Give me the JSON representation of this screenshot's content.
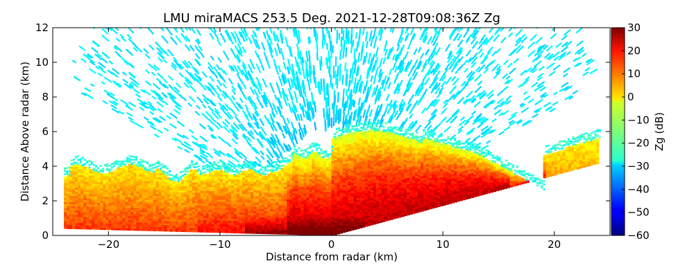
{
  "chart_data": {
    "type": "heatmap",
    "title": "LMU miraMACS 253.5 Deg. 2021-12-28T09:08:36Z  Zg",
    "xlabel": "Distance from radar (km)",
    "ylabel": "Distance Above radar  (km)",
    "xlim": [
      -25,
      25
    ],
    "ylim": [
      0,
      12
    ],
    "xticks": [
      -20,
      -10,
      0,
      10,
      20
    ],
    "yticks": [
      0,
      2,
      4,
      6,
      8,
      10,
      12
    ],
    "colorbar": {
      "label": "Zg (dB)",
      "range": [
        -60,
        30
      ],
      "ticks": [
        30,
        20,
        10,
        0,
        -10,
        -20,
        -30,
        -40,
        -50,
        -60
      ],
      "colormap": "jet"
    },
    "scan": {
      "azimuth_deg": 253.5,
      "time": "2021-12-28T09:08:36Z",
      "variable": "Zg",
      "left_edge_km": [
        -24,
        0.4
      ],
      "right_edge_km": [
        24,
        4.2
      ],
      "max_range_km": 24
    },
    "features": [
      {
        "region": "noise field above cloud",
        "Zg_dB": -28
      },
      {
        "region": "cloud top near 6 km east of radar",
        "Zg_dB": -5
      },
      {
        "region": "main cloud body 2-4 km",
        "Zg_dB": 12
      },
      {
        "region": "near-ground precipitation",
        "Zg_dB": 28
      }
    ]
  }
}
